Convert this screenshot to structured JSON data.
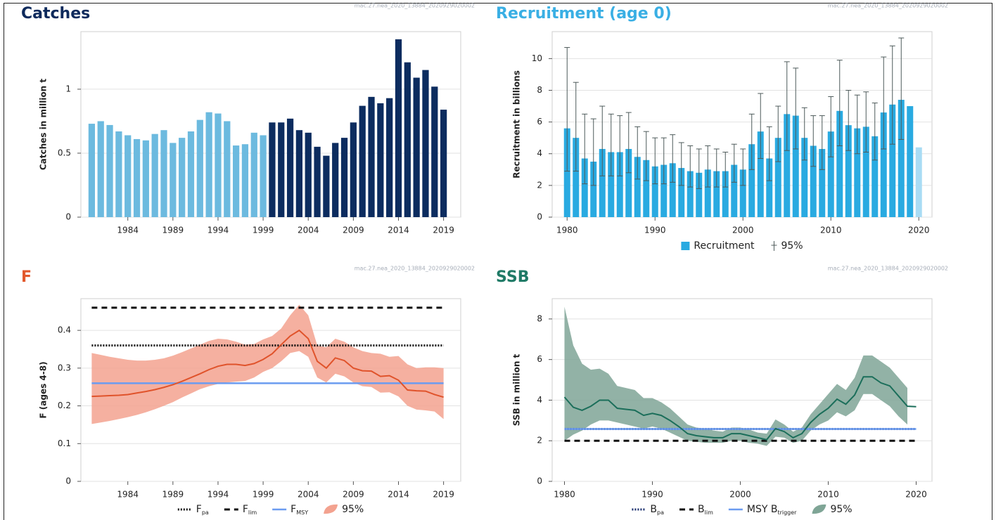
{
  "chart_data": [
    {
      "type": "bar",
      "title": "Catches",
      "title_color": "#0e2a5c",
      "y_label": "Catches in million t",
      "watermark": "mac.27.nea_2020_13884_2020929020002",
      "x": [
        1980,
        1981,
        1982,
        1983,
        1984,
        1985,
        1986,
        1987,
        1988,
        1989,
        1990,
        1991,
        1992,
        1993,
        1994,
        1995,
        1996,
        1997,
        1998,
        1999,
        2000,
        2001,
        2002,
        2003,
        2004,
        2005,
        2006,
        2007,
        2008,
        2009,
        2010,
        2011,
        2012,
        2013,
        2014,
        2015,
        2016,
        2017,
        2018,
        2019
      ],
      "values": [
        0.73,
        0.75,
        0.72,
        0.67,
        0.64,
        0.61,
        0.6,
        0.65,
        0.68,
        0.58,
        0.62,
        0.67,
        0.76,
        0.82,
        0.81,
        0.75,
        0.56,
        0.57,
        0.66,
        0.64,
        0.74,
        0.74,
        0.77,
        0.68,
        0.66,
        0.55,
        0.48,
        0.58,
        0.62,
        0.74,
        0.87,
        0.94,
        0.89,
        0.93,
        1.39,
        1.21,
        1.09,
        1.15,
        1.02,
        0.84
      ],
      "colors": [
        "#6cbadf",
        "#6cbadf",
        "#6cbadf",
        "#6cbadf",
        "#6cbadf",
        "#6cbadf",
        "#6cbadf",
        "#6cbadf",
        "#6cbadf",
        "#6cbadf",
        "#6cbadf",
        "#6cbadf",
        "#6cbadf",
        "#6cbadf",
        "#6cbadf",
        "#6cbadf",
        "#6cbadf",
        "#6cbadf",
        "#6cbadf",
        "#6cbadf",
        "#0c2c5f",
        "#0c2c5f",
        "#0c2c5f",
        "#0c2c5f",
        "#0c2c5f",
        "#0c2c5f",
        "#0c2c5f",
        "#0c2c5f",
        "#0c2c5f",
        "#0c2c5f",
        "#0c2c5f",
        "#0c2c5f",
        "#0c2c5f",
        "#0c2c5f",
        "#0c2c5f",
        "#0c2c5f",
        "#0c2c5f",
        "#0c2c5f",
        "#0c2c5f",
        "#0c2c5f"
      ],
      "xlim": [
        1978.8,
        2020.9
      ],
      "xticks": [
        1984,
        1989,
        1994,
        1999,
        2004,
        2009,
        2014,
        2019
      ],
      "ylim": [
        0,
        1.45
      ],
      "yticks": [
        0,
        0.5,
        1
      ],
      "grid": true
    },
    {
      "type": "bar",
      "title": "Recruitment (age 0)",
      "title_color": "#3aafe4",
      "y_label": "Recruitment in billions",
      "watermark": "mac.27.nea_2020_13884_2020929020002",
      "x": [
        1980,
        1981,
        1982,
        1983,
        1984,
        1985,
        1986,
        1987,
        1988,
        1989,
        1990,
        1991,
        1992,
        1993,
        1994,
        1995,
        1996,
        1997,
        1998,
        1999,
        2000,
        2001,
        2002,
        2003,
        2004,
        2005,
        2006,
        2007,
        2008,
        2009,
        2010,
        2011,
        2012,
        2013,
        2014,
        2015,
        2016,
        2017,
        2018,
        2019,
        2020
      ],
      "name": "Recruitment",
      "values": [
        5.6,
        5.0,
        3.7,
        3.5,
        4.3,
        4.1,
        4.1,
        4.3,
        3.8,
        3.6,
        3.2,
        3.3,
        3.4,
        3.1,
        2.9,
        2.8,
        3.0,
        2.9,
        2.9,
        3.3,
        3.0,
        4.6,
        5.4,
        3.7,
        5.0,
        6.5,
        6.4,
        5.0,
        4.5,
        4.3,
        5.4,
        6.7,
        5.8,
        5.6,
        5.7,
        5.1,
        6.6,
        7.1,
        7.4,
        7.0,
        4.4
      ],
      "colors": [
        "#29aae1",
        "#29aae1",
        "#29aae1",
        "#29aae1",
        "#29aae1",
        "#29aae1",
        "#29aae1",
        "#29aae1",
        "#29aae1",
        "#29aae1",
        "#29aae1",
        "#29aae1",
        "#29aae1",
        "#29aae1",
        "#29aae1",
        "#29aae1",
        "#29aae1",
        "#29aae1",
        "#29aae1",
        "#29aae1",
        "#29aae1",
        "#29aae1",
        "#29aae1",
        "#29aae1",
        "#29aae1",
        "#29aae1",
        "#29aae1",
        "#29aae1",
        "#29aae1",
        "#29aae1",
        "#29aae1",
        "#29aae1",
        "#29aae1",
        "#29aae1",
        "#29aae1",
        "#29aae1",
        "#29aae1",
        "#29aae1",
        "#29aae1",
        "#29aae1",
        "#a9dcf4"
      ],
      "errors": {
        "name": "95%",
        "color": "#4d5a5a",
        "low": [
          2.9,
          2.9,
          2.1,
          2.0,
          2.6,
          2.6,
          2.6,
          2.8,
          2.4,
          2.3,
          2.1,
          2.1,
          2.2,
          2.0,
          1.9,
          1.8,
          1.9,
          1.9,
          1.9,
          2.2,
          2.0,
          3.0,
          3.7,
          2.3,
          3.5,
          4.2,
          4.3,
          3.6,
          3.2,
          3.0,
          3.8,
          4.5,
          4.2,
          4.0,
          4.1,
          3.6,
          4.3,
          4.6,
          4.9,
          null,
          null
        ],
        "high": [
          10.7,
          8.5,
          6.5,
          6.2,
          7.0,
          6.5,
          6.4,
          6.6,
          5.7,
          5.4,
          5.0,
          5.0,
          5.2,
          4.7,
          4.5,
          4.3,
          4.5,
          4.3,
          4.1,
          4.6,
          4.3,
          6.5,
          7.8,
          5.7,
          7.0,
          9.8,
          9.4,
          6.9,
          6.4,
          6.4,
          7.6,
          9.9,
          8.0,
          7.7,
          7.9,
          7.2,
          10.1,
          10.8,
          11.3,
          null,
          null
        ]
      },
      "xlim": [
        1978.3,
        2021.5
      ],
      "xticks": [
        1980,
        1990,
        2000,
        2010,
        2020
      ],
      "ylim": [
        0,
        11.7
      ],
      "yticks": [
        0,
        2,
        4,
        6,
        8,
        10
      ],
      "grid": true
    },
    {
      "type": "line",
      "title": "F",
      "title_color": "#e2582c",
      "y_label": "F (ages 4-8)",
      "watermark": "mac.27.nea_2020_13884_2020929020002",
      "x": [
        1980,
        1981,
        1982,
        1983,
        1984,
        1985,
        1986,
        1987,
        1988,
        1989,
        1990,
        1991,
        1992,
        1993,
        1994,
        1995,
        1996,
        1997,
        1998,
        1999,
        2000,
        2001,
        2002,
        2003,
        2004,
        2005,
        2006,
        2007,
        2008,
        2009,
        2010,
        2011,
        2012,
        2013,
        2014,
        2015,
        2016,
        2017,
        2018,
        2019
      ],
      "line": {
        "color": "#e0532b",
        "values": [
          0.225,
          0.226,
          0.227,
          0.228,
          0.23,
          0.234,
          0.238,
          0.243,
          0.249,
          0.256,
          0.265,
          0.275,
          0.285,
          0.296,
          0.305,
          0.31,
          0.31,
          0.307,
          0.312,
          0.323,
          0.338,
          0.362,
          0.385,
          0.4,
          0.378,
          0.318,
          0.3,
          0.327,
          0.32,
          0.3,
          0.293,
          0.292,
          0.278,
          0.28,
          0.268,
          0.242,
          0.24,
          0.239,
          0.23,
          0.223
        ]
      },
      "band": {
        "name": "95%",
        "color": "#f3a28f",
        "low": [
          0.152,
          0.156,
          0.16,
          0.165,
          0.17,
          0.176,
          0.183,
          0.191,
          0.2,
          0.21,
          0.222,
          0.233,
          0.244,
          0.252,
          0.258,
          0.262,
          0.264,
          0.266,
          0.275,
          0.29,
          0.3,
          0.318,
          0.34,
          0.345,
          0.33,
          0.275,
          0.262,
          0.285,
          0.278,
          0.262,
          0.252,
          0.25,
          0.235,
          0.236,
          0.225,
          0.2,
          0.19,
          0.188,
          0.185,
          0.165
        ],
        "high": [
          0.34,
          0.335,
          0.33,
          0.326,
          0.322,
          0.32,
          0.32,
          0.322,
          0.326,
          0.333,
          0.342,
          0.352,
          0.362,
          0.372,
          0.378,
          0.376,
          0.37,
          0.362,
          0.364,
          0.376,
          0.385,
          0.405,
          0.44,
          0.468,
          0.44,
          0.36,
          0.355,
          0.378,
          0.37,
          0.355,
          0.345,
          0.34,
          0.338,
          0.33,
          0.332,
          0.31,
          0.3,
          0.302,
          0.302,
          0.3
        ]
      },
      "reference_lines": [
        {
          "name": "F",
          "subscript": "pa",
          "value": 0.36,
          "style": "dotted",
          "color": "#111111"
        },
        {
          "name": "F",
          "subscript": "lim",
          "value": 0.46,
          "style": "dashed",
          "color": "#111111"
        },
        {
          "name": "F",
          "subscript": "MSY",
          "value": 0.26,
          "style": "solid",
          "color": "#6b9cf0"
        }
      ],
      "xlim": [
        1978.8,
        2020.9
      ],
      "xticks": [
        1984,
        1989,
        1994,
        1999,
        2004,
        2009,
        2014,
        2019
      ],
      "ylim": [
        0,
        0.484
      ],
      "yticks": [
        0,
        0.1,
        0.2,
        0.3,
        0.4
      ],
      "grid": true
    },
    {
      "type": "line",
      "title": "SSB",
      "title_color": "#1f7a66",
      "y_label": "SSB in million t",
      "watermark": "mac.27.nea_2020_13884_2020929020002",
      "x": [
        1980,
        1981,
        1982,
        1983,
        1984,
        1985,
        1986,
        1987,
        1988,
        1989,
        1990,
        1991,
        1992,
        1993,
        1994,
        1995,
        1996,
        1997,
        1998,
        1999,
        2000,
        2001,
        2002,
        2003,
        2004,
        2005,
        2006,
        2007,
        2008,
        2009,
        2010,
        2011,
        2012,
        2013,
        2014,
        2015,
        2016,
        2017,
        2018,
        2019,
        2020
      ],
      "line": {
        "color": "#1b6e5a",
        "values": [
          4.15,
          3.65,
          3.5,
          3.7,
          4.0,
          4.0,
          3.6,
          3.55,
          3.5,
          3.25,
          3.35,
          3.25,
          3.0,
          2.7,
          2.35,
          2.25,
          2.2,
          2.15,
          2.15,
          2.35,
          2.35,
          2.25,
          2.15,
          2.05,
          2.6,
          2.45,
          2.15,
          2.35,
          2.9,
          3.3,
          3.6,
          4.05,
          3.8,
          4.25,
          5.15,
          5.15,
          4.85,
          4.7,
          4.2,
          3.7,
          3.68
        ]
      },
      "band": {
        "name": "95%",
        "color": "#7fa596",
        "low": [
          2.0,
          2.3,
          2.5,
          2.8,
          3.0,
          3.0,
          2.9,
          2.8,
          2.7,
          2.6,
          2.7,
          2.6,
          2.4,
          2.2,
          2.0,
          1.95,
          1.9,
          1.9,
          1.9,
          2.0,
          2.0,
          1.9,
          1.85,
          1.75,
          2.2,
          2.15,
          1.9,
          2.0,
          2.5,
          2.8,
          3.0,
          3.4,
          3.2,
          3.5,
          4.3,
          4.3,
          4.0,
          3.7,
          3.2,
          2.8,
          null
        ],
        "high": [
          8.6,
          6.7,
          5.8,
          5.5,
          5.55,
          5.3,
          4.7,
          4.6,
          4.5,
          4.1,
          4.1,
          3.9,
          3.6,
          3.2,
          2.8,
          2.65,
          2.6,
          2.5,
          2.45,
          2.65,
          2.65,
          2.55,
          2.4,
          2.35,
          3.05,
          2.8,
          2.45,
          2.65,
          3.3,
          3.8,
          4.3,
          4.8,
          4.5,
          5.1,
          6.2,
          6.2,
          5.9,
          5.6,
          5.1,
          4.6,
          null
        ]
      },
      "reference_lines": [
        {
          "name": "B",
          "subscript": "pa",
          "value": 2.58,
          "style": "dotted",
          "color": "#1a2e6e"
        },
        {
          "name": "B",
          "subscript": "lim",
          "value": 2.0,
          "style": "dashed",
          "color": "#111111"
        },
        {
          "name": "MSY B",
          "subscript": "trigger",
          "value": 2.58,
          "style": "solid",
          "color": "#6b9cf0"
        }
      ],
      "xlim": [
        1978.6,
        2021.8
      ],
      "xticks": [
        1980,
        1990,
        2000,
        2010,
        2020
      ],
      "ylim": [
        0,
        9.0
      ],
      "yticks": [
        0,
        2,
        4,
        6,
        8
      ],
      "grid": true
    }
  ]
}
